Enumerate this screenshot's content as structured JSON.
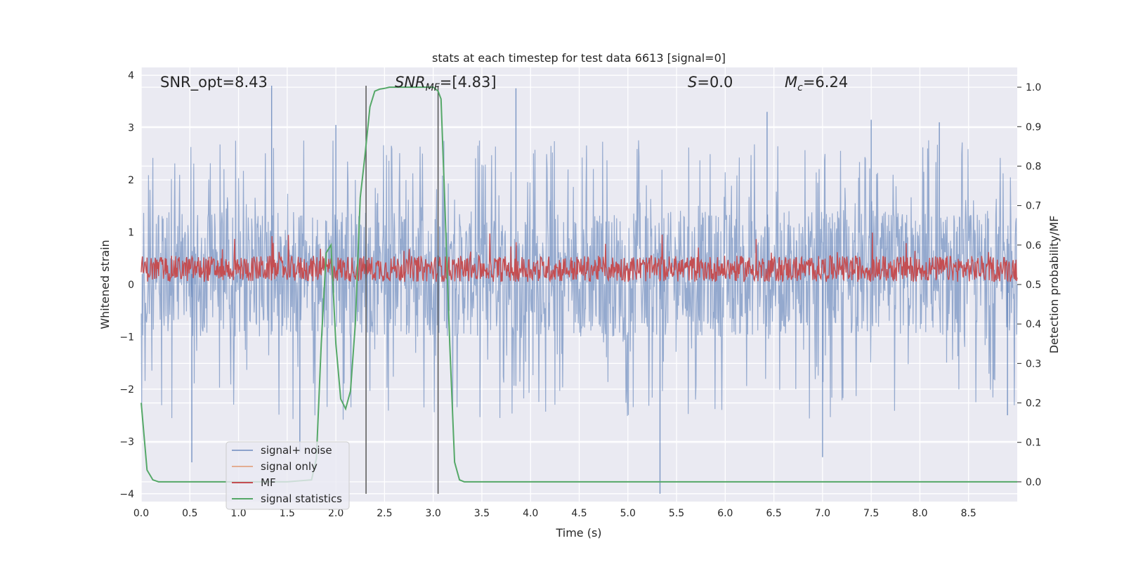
{
  "chart_data": {
    "type": "line",
    "title": "stats at each timestep for test data 6613 [signal=0]",
    "xlabel": "Time (s)",
    "ylabel_left": "Whitened strain",
    "ylabel_right": "Detection probability/MF",
    "xlim": [
      0,
      9
    ],
    "ylim_left": [
      -4.15,
      4.15
    ],
    "ylim_right": [
      -0.05,
      1.05
    ],
    "x_ticks": [
      0.0,
      0.5,
      1.0,
      1.5,
      2.0,
      2.5,
      3.0,
      3.5,
      4.0,
      4.5,
      5.0,
      5.5,
      6.0,
      6.5,
      7.0,
      7.5,
      8.0,
      8.5
    ],
    "x_tick_labels": [
      "0.0",
      "0.5",
      "1.0",
      "1.5",
      "2.0",
      "2.5",
      "3.0",
      "3.5",
      "4.0",
      "4.5",
      "5.0",
      "5.5",
      "6.0",
      "6.5",
      "7.0",
      "7.5",
      "8.0",
      "8.5"
    ],
    "y_left_ticks": [
      4,
      3,
      2,
      1,
      0,
      -1,
      -2,
      -3,
      -4
    ],
    "y_left_tick_labels": [
      "4",
      "3",
      "2",
      "1",
      "0",
      "−1",
      "−2",
      "−3",
      "−4"
    ],
    "y_right_ticks": [
      1.0,
      0.9,
      0.8,
      0.7,
      0.6,
      0.5,
      0.4,
      0.3,
      0.2,
      0.1,
      0.0
    ],
    "y_right_tick_labels": [
      "1.0",
      "0.9",
      "0.8",
      "0.7",
      "0.6",
      "0.5",
      "0.4",
      "0.3",
      "0.2",
      "0.1",
      "0.0"
    ],
    "grid": true,
    "legend_position": "lower-left",
    "annotations": {
      "snr_opt": "SNR_opt=8.43",
      "snr_mf_main": "SNR",
      "snr_mf_sub": "MF",
      "snr_mf_value": "=[4.83]",
      "s_label": "S",
      "s_value": "=0.0",
      "mc_main": "M",
      "mc_sub": "c",
      "mc_value": "=6.24"
    },
    "series": [
      {
        "name": "signal+ noise",
        "color": "#4c72b0",
        "opacity": 0.55,
        "axis": "left",
        "band": [
          -1.0,
          1.4
        ],
        "peaks_high": [
          3.8,
          3.75,
          3.6,
          3.3,
          3.15,
          3.1,
          3.05
        ],
        "peaks_low": [
          -4.0,
          -3.6,
          -3.4,
          -3.3,
          -3.25,
          -3.2
        ]
      },
      {
        "name": "signal only",
        "color": "#dd8452",
        "axis": "left",
        "values": []
      },
      {
        "name": "MF",
        "color": "#c44e52",
        "axis": "left",
        "band": [
          0.05,
          0.55
        ],
        "peak": 1.0
      },
      {
        "name": "signal statistics",
        "color": "#55a868",
        "axis": "right",
        "x": [
          0.0,
          0.06,
          0.12,
          0.18,
          0.25,
          1.0,
          1.5,
          1.75,
          1.8,
          1.85,
          1.9,
          1.95,
          2.0,
          2.05,
          2.1,
          2.15,
          2.2,
          2.25,
          2.3,
          2.35,
          2.4,
          2.45,
          2.5,
          2.55,
          2.6,
          2.8,
          3.0,
          3.05,
          3.08,
          3.12,
          3.17,
          3.22,
          3.27,
          3.32,
          3.4,
          9.0
        ],
        "y": [
          0.2,
          0.03,
          0.005,
          0.0,
          0.0,
          0.0,
          0.0,
          0.005,
          0.06,
          0.35,
          0.58,
          0.6,
          0.35,
          0.21,
          0.185,
          0.23,
          0.4,
          0.72,
          0.83,
          0.95,
          0.99,
          0.995,
          0.997,
          1.0,
          1.0,
          1.0,
          1.0,
          0.99,
          0.97,
          0.7,
          0.35,
          0.05,
          0.005,
          0.0,
          0.0,
          0.0
        ]
      }
    ],
    "vertical_lines": {
      "color": "#555555",
      "x": [
        2.31,
        3.05
      ],
      "y_range": [
        -4.0,
        3.8
      ]
    }
  }
}
